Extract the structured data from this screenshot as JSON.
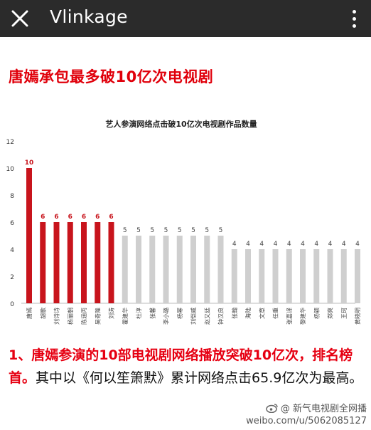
{
  "appbar": {
    "title": "Vlinkage",
    "close_icon": "close-icon",
    "menu_icon": "more-vertical-icon"
  },
  "headline": "唐嫣承包最多破10亿次电视剧",
  "chart_data": {
    "type": "bar",
    "title": "艺人参演网络点击破10亿次电视剧作品数量",
    "categories": [
      "唐嫣",
      "胡歌",
      "刘诗诗",
      "杨丽朝",
      "陈涵丙",
      "吴奇隆",
      "刘涛",
      "霍建华",
      "杜淳",
      "张馨",
      "李小璐",
      "杨幂",
      "刘恺威",
      "赵又廷",
      "钟汉良",
      "张翰",
      "海陆",
      "文章",
      "任重",
      "张嘉译",
      "黎建华",
      "杨颖",
      "郑爽",
      "王珂",
      "黄晓明"
    ],
    "values": [
      10,
      6,
      6,
      6,
      6,
      6,
      6,
      5,
      5,
      5,
      5,
      5,
      5,
      5,
      5,
      4,
      4,
      4,
      4,
      4,
      4,
      4,
      4,
      4,
      4
    ],
    "ylim": [
      0,
      12
    ],
    "yticks": [
      0,
      2,
      4,
      6,
      8,
      10,
      12
    ],
    "highlight_count": 7,
    "colors": {
      "highlight": "#c8141c",
      "normal": "#cfcfcf",
      "highlight_label": "#c8141c",
      "normal_label": "#444444"
    },
    "grid": false
  },
  "paragraph": {
    "lead_red": "1、唐嫣参演的10部电视剧网络播放突破10亿次，排名榜首。",
    "body": "其中以《何以笙箫默》累计网络点击65.9亿次为最高。"
  },
  "watermark": {
    "line1": "@ 新气电视剧全网播",
    "line2": "weibo.com/u/5062085127"
  }
}
